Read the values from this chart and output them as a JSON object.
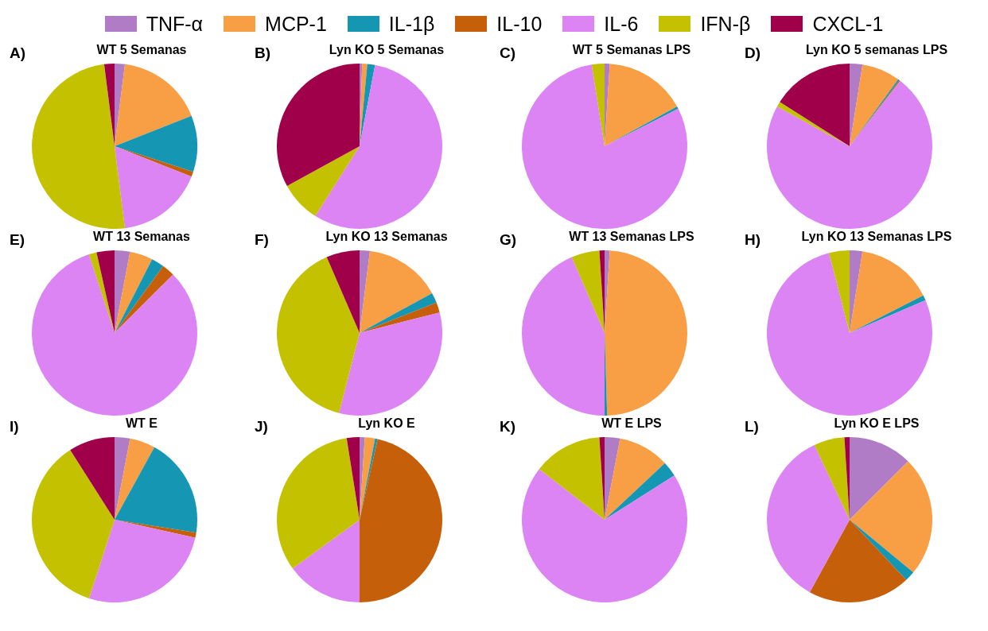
{
  "chart_data": [
    {
      "type": "pie",
      "title": "WT 5 Semanas",
      "annotations": [
        "A)"
      ],
      "legend": "top",
      "categories": [
        "TNF-α",
        "MCP-1",
        "IL-1β",
        "IL-10",
        "IL-6",
        "IFN-β",
        "CXCL-1"
      ],
      "values": [
        2,
        17,
        11,
        1,
        17,
        50,
        2
      ],
      "colors": [
        "#b07cc6",
        "#f89e44",
        "#1597b3",
        "#c55f0a",
        "#dc84f4",
        "#c4c100",
        "#a0004a"
      ]
    },
    {
      "type": "pie",
      "title": "Lyn KO 5 Semanas",
      "annotations": [
        "B)"
      ],
      "categories": [
        null,
        null,
        null,
        null,
        null,
        null,
        null
      ],
      "values": [
        0.5,
        1,
        1.5,
        0,
        56,
        8,
        33
      ],
      "colors": [
        "#b07cc6",
        "#f89e44",
        "#1597b3",
        "#c55f0a",
        "#dc84f4",
        "#c4c100",
        "#a0004a"
      ]
    },
    {
      "type": "pie",
      "title": "WT 5 Semanas LPS",
      "annotations": [
        "C)"
      ],
      "categories": [
        null,
        null,
        null,
        null,
        null,
        null,
        null
      ],
      "values": [
        1,
        16,
        0.5,
        0,
        80,
        2.5,
        0
      ],
      "colors": [
        "#b07cc6",
        "#f89e44",
        "#1597b3",
        "#c55f0a",
        "#dc84f4",
        "#c4c100",
        "#a0004a"
      ]
    },
    {
      "type": "pie",
      "title": "Lyn KO 5 semanas LPS",
      "annotations": [
        "D)"
      ],
      "categories": [
        null,
        null,
        null,
        null,
        null,
        null,
        null
      ],
      "values": [
        2.5,
        7.5,
        0.3,
        0.2,
        72.5,
        1,
        16
      ],
      "colors": [
        "#b07cc6",
        "#f89e44",
        "#1597b3",
        "#c55f0a",
        "#dc84f4",
        "#c4c100",
        "#a0004a"
      ]
    },
    {
      "type": "pie",
      "title": "WT 13 Semanas",
      "annotations": [
        "E)"
      ],
      "categories": [
        null,
        null,
        null,
        null,
        null,
        null,
        null
      ],
      "values": [
        3,
        4.5,
        2.5,
        2.5,
        82.5,
        1.5,
        3.5
      ],
      "colors": [
        "#b07cc6",
        "#f89e44",
        "#1597b3",
        "#c55f0a",
        "#dc84f4",
        "#c4c100",
        "#a0004a"
      ]
    },
    {
      "type": "pie",
      "title": "Lyn KO 13 Semanas",
      "annotations": [
        "F)"
      ],
      "categories": [
        null,
        null,
        null,
        null,
        null,
        null,
        null
      ],
      "values": [
        2,
        15,
        2,
        2,
        33,
        39.5,
        6.5
      ],
      "colors": [
        "#b07cc6",
        "#f89e44",
        "#1597b3",
        "#c55f0a",
        "#dc84f4",
        "#c4c100",
        "#a0004a"
      ]
    },
    {
      "type": "pie",
      "title": "WT 13 Semanas LPS",
      "annotations": [
        "G)"
      ],
      "categories": [
        null,
        null,
        null,
        null,
        null,
        null,
        null
      ],
      "values": [
        1,
        48.5,
        0.5,
        0,
        43.5,
        5.5,
        1
      ],
      "colors": [
        "#b07cc6",
        "#f89e44",
        "#1597b3",
        "#c55f0a",
        "#dc84f4",
        "#c4c100",
        "#a0004a"
      ]
    },
    {
      "type": "pie",
      "title": "Lyn KO 13 Semanas LPS",
      "annotations": [
        "H)"
      ],
      "categories": [
        null,
        null,
        null,
        null,
        null,
        null,
        null
      ],
      "values": [
        2.5,
        15,
        1,
        0,
        77.5,
        4,
        0
      ],
      "colors": [
        "#b07cc6",
        "#f89e44",
        "#1597b3",
        "#c55f0a",
        "#dc84f4",
        "#c4c100",
        "#a0004a"
      ]
    },
    {
      "type": "pie",
      "title": "WT E",
      "annotations": [
        "I)"
      ],
      "categories": [
        null,
        null,
        null,
        null,
        null,
        null,
        null
      ],
      "values": [
        3,
        5,
        19.5,
        1,
        26.5,
        36,
        9
      ],
      "colors": [
        "#b07cc6",
        "#f89e44",
        "#1597b3",
        "#c55f0a",
        "#dc84f4",
        "#c4c100",
        "#a0004a"
      ]
    },
    {
      "type": "pie",
      "title": "Lyn KO E",
      "annotations": [
        "J)"
      ],
      "categories": [
        null,
        null,
        null,
        null,
        null,
        null,
        null
      ],
      "values": [
        1,
        2,
        0.5,
        46.5,
        15,
        32.5,
        2.5
      ],
      "colors": [
        "#b07cc6",
        "#f89e44",
        "#1597b3",
        "#c55f0a",
        "#dc84f4",
        "#c4c100",
        "#a0004a"
      ]
    },
    {
      "type": "pie",
      "title": "WT E LPS",
      "annotations": [
        "K)"
      ],
      "categories": [
        null,
        null,
        null,
        null,
        null,
        null,
        null
      ],
      "values": [
        3,
        10,
        3,
        0,
        69.5,
        13.5,
        1
      ],
      "colors": [
        "#b07cc6",
        "#f89e44",
        "#1597b3",
        "#c55f0a",
        "#dc84f4",
        "#c4c100",
        "#a0004a"
      ]
    },
    {
      "type": "pie",
      "title": "Lyn KO E LPS",
      "annotations": [
        "L)"
      ],
      "categories": [
        null,
        null,
        null,
        null,
        null,
        null,
        null
      ],
      "values": [
        12.5,
        23.5,
        2,
        20,
        35,
        6,
        1
      ],
      "colors": [
        "#b07cc6",
        "#f89e44",
        "#1597b3",
        "#c55f0a",
        "#dc84f4",
        "#c4c100",
        "#a0004a"
      ]
    }
  ]
}
